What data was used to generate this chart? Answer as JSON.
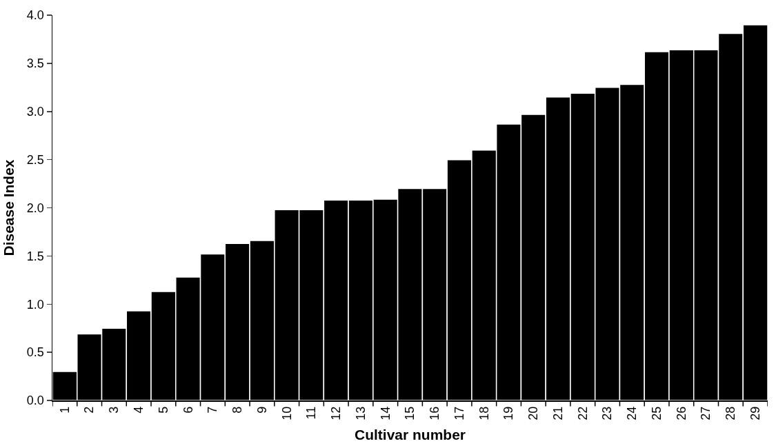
{
  "chart_data": {
    "type": "bar",
    "xlabel": "Cultivar number",
    "ylabel": "Disease Index",
    "categories": [
      "1",
      "2",
      "3",
      "4",
      "5",
      "6",
      "7",
      "8",
      "9",
      "10",
      "11",
      "12",
      "13",
      "14",
      "15",
      "16",
      "17",
      "18",
      "19",
      "20",
      "21",
      "22",
      "23",
      "24",
      "25",
      "26",
      "27",
      "28",
      "29"
    ],
    "values": [
      0.3,
      0.69,
      0.75,
      0.93,
      1.13,
      1.28,
      1.52,
      1.63,
      1.66,
      1.98,
      1.98,
      2.08,
      2.08,
      2.09,
      2.2,
      2.2,
      2.5,
      2.6,
      2.87,
      2.97,
      3.15,
      3.19,
      3.25,
      3.28,
      3.62,
      3.64,
      3.64,
      3.81,
      3.9
    ],
    "color": "#000000",
    "ylim": [
      0,
      4
    ],
    "yticks": [
      {
        "value": 0,
        "label": "0.0"
      },
      {
        "value": 0.5,
        "label": "0.5"
      },
      {
        "value": 1,
        "label": "1.0"
      },
      {
        "value": 1.5,
        "label": "1.5"
      },
      {
        "value": 2,
        "label": "2.0"
      },
      {
        "value": 2.5,
        "label": "2.5"
      },
      {
        "value": 3,
        "label": "3.0"
      },
      {
        "value": 3.5,
        "label": "3.5"
      },
      {
        "value": 4,
        "label": "4.0"
      }
    ],
    "grid": false
  }
}
